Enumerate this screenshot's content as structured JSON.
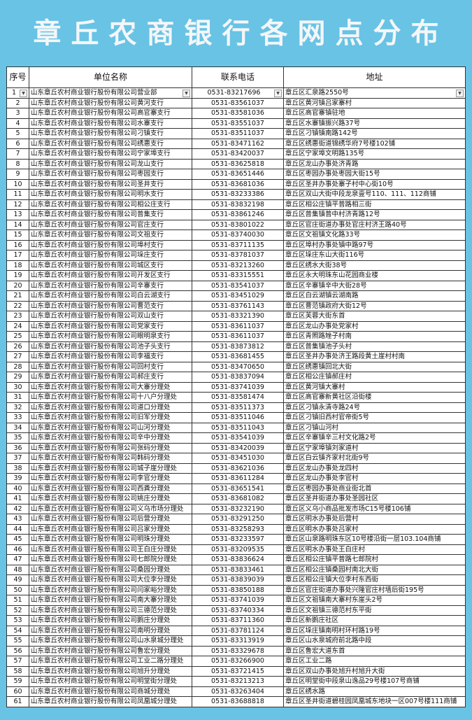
{
  "title": "章丘农商银行各网点分布",
  "table": {
    "headers": [
      "序号",
      "单位名称",
      "联系电话",
      "地址"
    ],
    "filter_icon": "dropdown-arrow-icon",
    "rows": [
      [
        "1",
        "山东章丘农村商业银行股份有限公司营业部",
        "0531-83217696",
        "章丘区汇泉路2550号"
      ],
      [
        "2",
        "山东章丘农村商业银行股份有限公司黄河支行",
        "0531-83561037",
        "章丘区黄河镇吕家寨村"
      ],
      [
        "3",
        "山东章丘农村商业银行股份有限公司高官寨支行",
        "0531-83581036",
        "章丘区高官寨镇驻地"
      ],
      [
        "4",
        "山东章丘农村商业银行股份有限公司水寨支行",
        "0531-83551037",
        "章丘区水寨镇振兴路37号"
      ],
      [
        "5",
        "山东章丘农村商业银行股份有限公司刁镇支行",
        "0531-83511037",
        "章丘区刁镇镇南路142号"
      ],
      [
        "6",
        "山东章丘农村商业银行股份有限公司绣惠支行",
        "0531-83471162",
        "章丘区绣惠街道锦绣华府7号楼102铺"
      ],
      [
        "7",
        "山东章丘农村商业银行股份有限公司宁家埠支行",
        "0531-83420037",
        "章丘区宁家埠文明路135号"
      ],
      [
        "8",
        "山东章丘农村商业银行股份有限公司龙山支行",
        "0531-83625818",
        "章丘区龙山办事处济青路"
      ],
      [
        "9",
        "山东章丘农村商业银行股份有限公司枣园支行",
        "0531-83651446",
        "章丘区枣园办事处枣园大街15号"
      ],
      [
        "10",
        "山东章丘农村商业银行股份有限公司圣井支行",
        "0531-83681036",
        "章丘区圣井办事处寨子村中心街10号"
      ],
      [
        "11",
        "山东章丘农村商业银行股份有限公司明水支行",
        "0531-83233386",
        "章丘区双山大街中段龙泉壹号110、111、112商铺"
      ],
      [
        "12",
        "山东章丘农村商业银行股份有限公司相公庄支行",
        "0531-83832198",
        "章丘区相公庄镇平普路相三街"
      ],
      [
        "13",
        "山东章丘农村商业银行股份有限公司普集支行",
        "0531-83861246",
        "章丘区普集镇普中村济青路12号"
      ],
      [
        "14",
        "山东章丘农村商业银行股份有限公司官庄支行",
        "0531-83801022",
        "章丘区官庄街道办事处官庄村济王路40号"
      ],
      [
        "15",
        "山东章丘农村商业银行股份有限公司文祖支行",
        "0531-83740030",
        "章丘区文祖镇文化路33号"
      ],
      [
        "16",
        "山东章丘农村商业银行股份有限公司埠村支行",
        "0531-83711135",
        "章丘区埠村办事处镇中路97号"
      ],
      [
        "17",
        "山东章丘农村商业银行股份有限公司垛庄支行",
        "0531-83781037",
        "章丘区垛庄东山大街116号"
      ],
      [
        "18",
        "山东章丘农村商业银行股份有限公司城区支行",
        "0531-83213260",
        "章丘区绣水大街38号"
      ],
      [
        "19",
        "山东章丘农村商业银行股份有限公司开发区支行",
        "0531-83315551",
        "章丘区永大明珠东山花园商业楼"
      ],
      [
        "20",
        "山东章丘农村商业银行股份有限公司辛寨支行",
        "0531-83541037",
        "章丘区辛寨镇辛中大街28号"
      ],
      [
        "21",
        "山东章丘农村商业银行股份有限公司白云湖支行",
        "0531-83451029",
        "章丘区白云湖镇云湖南路"
      ],
      [
        "22",
        "山东章丘农村商业银行股份有限公司曹范支行",
        "0531-83761143",
        "章丘区曹范镇政府大街12号"
      ],
      [
        "23",
        "山东章丘农村商业银行股份有限公司双山支行",
        "0531-83321390",
        "章丘区芙蓉大街东首"
      ],
      [
        "24",
        "山东章丘农村商业银行股份有限公司党家支行",
        "0531-83611037",
        "章丘区龙山办事处党家村"
      ],
      [
        "25",
        "山东章丘农村商业银行股份有限公司眼明泉支行",
        "0531-83611037",
        "章丘区青照路矬子村南"
      ],
      [
        "26",
        "山东章丘农村商业银行股份有限公司池子头支行",
        "0531-83873812",
        "章丘区普集镇池子头村"
      ],
      [
        "27",
        "山东章丘农村商业银行股份有限公司李福支行",
        "0531-83681455",
        "章丘区圣井办事处济王路段黄土崖村村南"
      ],
      [
        "28",
        "山东章丘农村商业银行股份有限公司回村支行",
        "0531-83470650",
        "章丘区绣惠镇回北大街"
      ],
      [
        "29",
        "山东章丘农村商业银行股份有限公司郝庄支行",
        "0531-83837094",
        "章丘区相公庄镇郝庄村"
      ],
      [
        "30",
        "山东章丘农村商业银行股份有限公司大寨分理处",
        "0531-83741039",
        "章丘区黄河镇大寨村"
      ],
      [
        "31",
        "山东章丘农村商业银行股份有限公司十八户分理处",
        "0531-83581474",
        "章丘区高官寨新黄社区沿街楼"
      ],
      [
        "32",
        "山东章丘农村商业银行股份有限公司道口分理处",
        "0531-83511373",
        "章丘区刁镇永清寺路24号"
      ],
      [
        "33",
        "山东章丘农村商业银行股份有限公司旧军分理处",
        "0531-83511046",
        "章丘区刁镇旧西村官帝街5号"
      ],
      [
        "34",
        "山东章丘农村商业银行股份有限公司山河分理处",
        "0531-83511043",
        "章丘区刁镇山河村"
      ],
      [
        "35",
        "山东章丘农村商业银行股份有限公司辛中分理处",
        "0531-83541039",
        "章丘区辛寨镇辛三村文化路2号"
      ],
      [
        "36",
        "山东章丘农村商业银行股份有限公司张码分理处",
        "0531-83420039",
        "章丘区宁家埠镇刘家道村"
      ],
      [
        "37",
        "山东章丘农村商业银行股份有限公司韩码分理处",
        "0531-83451030",
        "章丘区白云镇齐家村北街9号"
      ],
      [
        "38",
        "山东章丘农村商业银行股份有限公司城子崖分理处",
        "0531-83621036",
        "章丘区龙山办事处龙四村"
      ],
      [
        "39",
        "山东章丘农村商业银行股份有限公司李官分理处",
        "0531-83611284",
        "章丘区龙山办事处李官村"
      ],
      [
        "40",
        "山东章丘农村商业银行股份有限公司西粪分理处",
        "0531-83651541",
        "章丘区枣园办事处商业街北首"
      ],
      [
        "41",
        "山东章丘农村商业银行股份有限公司姚庄分理处",
        "0531-83681082",
        "章丘区圣井街道办事处圣园社区"
      ],
      [
        "42",
        "山东章丘农村商业银行股份有限公司义乌市场分理处",
        "0531-83232190",
        "章丘区义乌小商品批发市场C15号楼106铺"
      ],
      [
        "43",
        "山东章丘农村商业银行股份有限公司后营分理处",
        "0531-83291250",
        "章丘区明水办事处后营村"
      ],
      [
        "44",
        "山东章丘农村商业银行股份有限公司吕家分理处",
        "0531-83258293",
        "章丘区明水办事处吕家村"
      ],
      [
        "45",
        "山东章丘农村商业银行股份有限公司明珠分理处",
        "0531-83233597",
        "章丘区山泉路明珠东区10号楼沿街一层103.104商铺"
      ],
      [
        "46",
        "山东章丘农村商业银行股份有限公司王白庄分理处",
        "0531-83209535",
        "章丘区明水办事处王白庄村"
      ],
      [
        "47",
        "山东章丘农村商业银行股份有限公司七郎院分理处",
        "0531-83836624",
        "章丘区相公庄镇平普路七郎院村"
      ],
      [
        "48",
        "山东章丘农村商业银行股份有限公司桑园分理处",
        "0531-83833461",
        "章丘区相公庄镇桑园村南北大街"
      ],
      [
        "49",
        "山东章丘农村商业银行股份有限公司大位李分理处",
        "0531-83839039",
        "章丘区相公庄镇大位李村东西街"
      ],
      [
        "50",
        "山东章丘农村商业银行股份有限公司闫家峪分理处",
        "0531-83850188",
        "章丘区官庄街道办事处兴隆官庄村墙后街195号"
      ],
      [
        "51",
        "山东章丘农村商业银行股份有限公司南大寨分理处",
        "0531-83741039",
        "章丘区文祖镇南大寨村东崖头2号"
      ],
      [
        "52",
        "山东章丘农村商业银行股份有限公司三德范分理处",
        "0531-83740334",
        "章丘区文祖镇三德范村东平街"
      ],
      [
        "53",
        "山东章丘农村商业银行股份有限公司鹅庄分理处",
        "0531-83711360",
        "章丘区新鹅庄社区"
      ],
      [
        "54",
        "山东章丘农村商业银行股份有限公司南明分理处",
        "0531-83781124",
        "章丘区垛庄镇南明村环村路19号"
      ],
      [
        "55",
        "山东章丘农村商业银行股份有限公司山水泉城分理处",
        "0531-83313919",
        "章丘区山水泉城府前北路中段"
      ],
      [
        "56",
        "山东章丘农村商业银行股份有限公司鲁宏分理处",
        "0531-83329678",
        "章丘区鲁宏大道东首"
      ],
      [
        "57",
        "山东章丘农村商业银行股份有限公司工业二路分理处",
        "0531-83266900",
        "章丘区工业二路"
      ],
      [
        "58",
        "山东章丘农村商业银行股份有限公司旭升分理处",
        "0531-83721415",
        "章丘区双山办事处旭升村旭升大街"
      ],
      [
        "59",
        "山东章丘农村商业银行股份有限公司明堂街分理处",
        "0531-83213213",
        "章丘区明堂街中段泉山逸品29号楼107号商铺"
      ],
      [
        "60",
        "山东章丘农村商业银行股份有限公司商城分理处",
        "0531-83263404",
        "章丘区绣水路"
      ],
      [
        "61",
        "山东章丘农村商业银行股份有限公司凤凰城分理处",
        "0531-83688818",
        "章丘区圣井街道碧桂园凤凰城东地块一区007号楼111商铺"
      ]
    ]
  }
}
